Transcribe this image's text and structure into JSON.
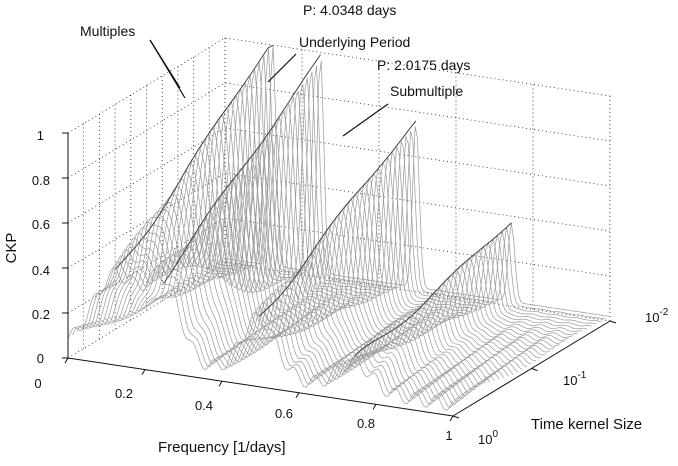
{
  "chart_data": {
    "type": "surface3d",
    "title": "",
    "xlabel": "Frequency [1/days]",
    "ylabel": "Time kernel Size",
    "zlabel": "CKP",
    "x_ticks": [
      "0",
      "0.2",
      "0.4",
      "0.6",
      "0.8",
      "1"
    ],
    "z_ticks": [
      "0",
      "0.2",
      "0.4",
      "0.6",
      "0.8",
      "1"
    ],
    "y_ticks": [
      {
        "base": "10",
        "exp": "-2"
      },
      {
        "base": "10",
        "exp": "-1"
      },
      {
        "base": "10",
        "exp": "0"
      }
    ],
    "xlim": [
      0,
      1
    ],
    "zlim": [
      0,
      1
    ],
    "y_scale": "log",
    "grid": true,
    "peaks": [
      {
        "frequency": 0.124,
        "ckp": 1.0
      },
      {
        "frequency": 0.248,
        "ckp": 0.97
      },
      {
        "frequency": 0.496,
        "ckp": 0.74
      },
      {
        "frequency": 0.744,
        "ckp": 0.35
      }
    ],
    "annotations": [
      {
        "text": "Multiples"
      },
      {
        "text": "P: 4.0348 days"
      },
      {
        "text": "Underlying Period"
      },
      {
        "text": "P: 2.0175 days"
      },
      {
        "text": "Submultiple"
      }
    ]
  }
}
